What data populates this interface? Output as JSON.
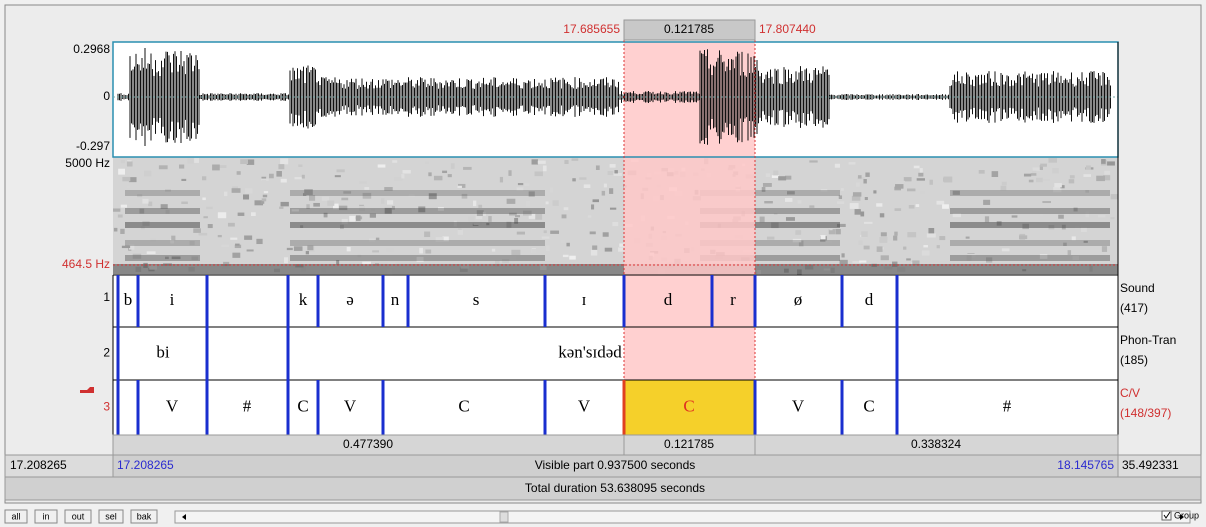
{
  "selection": {
    "start": "17.685655",
    "duration": "0.121785",
    "end": "17.807440"
  },
  "waveform": {
    "max": "0.2968",
    "zero": "0",
    "min": "-0.297"
  },
  "spectrogram": {
    "max": "5000 Hz",
    "min": "464.5 Hz"
  },
  "tiers": [
    {
      "number": "1",
      "name": "Sound",
      "count": "(417)",
      "labels": [
        "b",
        "i",
        "k",
        "ə",
        "n",
        "s",
        "ɪ",
        "d",
        "r",
        "ø",
        "d"
      ]
    },
    {
      "number": "2",
      "name": "Phon-Tran",
      "count": "(185)",
      "labels": [
        "bi",
        "kən'sɪdəd"
      ]
    },
    {
      "number": "3",
      "name": "C/V",
      "count": "(148/397)",
      "labels": [
        "V",
        "#",
        "C",
        "V",
        "C",
        "V",
        "C",
        "V",
        "C",
        "#"
      ]
    }
  ],
  "durations": [
    "0.477390",
    "0.121785",
    "0.338324"
  ],
  "visible": {
    "window_start": "17.208265",
    "start": "17.208265",
    "label": "Visible part 0.937500 seconds",
    "end": "18.145765",
    "window_end": "35.492331"
  },
  "total": "Total duration 53.638095 seconds",
  "buttons": [
    "all",
    "in",
    "out",
    "sel",
    "bak"
  ],
  "group": "Group"
}
